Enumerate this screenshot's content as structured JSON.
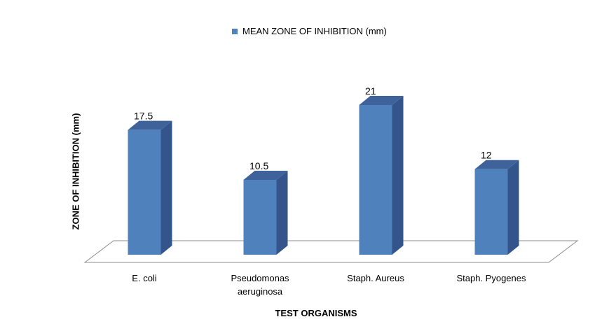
{
  "chart_data": {
    "type": "bar",
    "categories": [
      "E. coli",
      "Pseudomonas aeruginosa",
      "Staph. Aureus",
      "Staph. Pyogenes"
    ],
    "category_lines": [
      [
        "E. coli"
      ],
      [
        "Pseudomonas",
        "aeruginosa"
      ],
      [
        "Staph. Aureus"
      ],
      [
        "Staph. Pyogenes"
      ]
    ],
    "series": [
      {
        "name": "MEAN ZONE OF INHIBITION (mm)",
        "values": [
          17.5,
          10.5,
          21,
          12
        ],
        "color": "#4f81bd"
      }
    ],
    "data_labels": [
      "17.5",
      "10.5",
      "21",
      "12"
    ],
    "title": "",
    "xlabel": "TEST ORGANISMS",
    "ylabel": "ZONE OF INHIBITION (mm)",
    "ylim": [
      0,
      21
    ],
    "legend_position": "top",
    "grid": false,
    "style": "3d-column"
  }
}
